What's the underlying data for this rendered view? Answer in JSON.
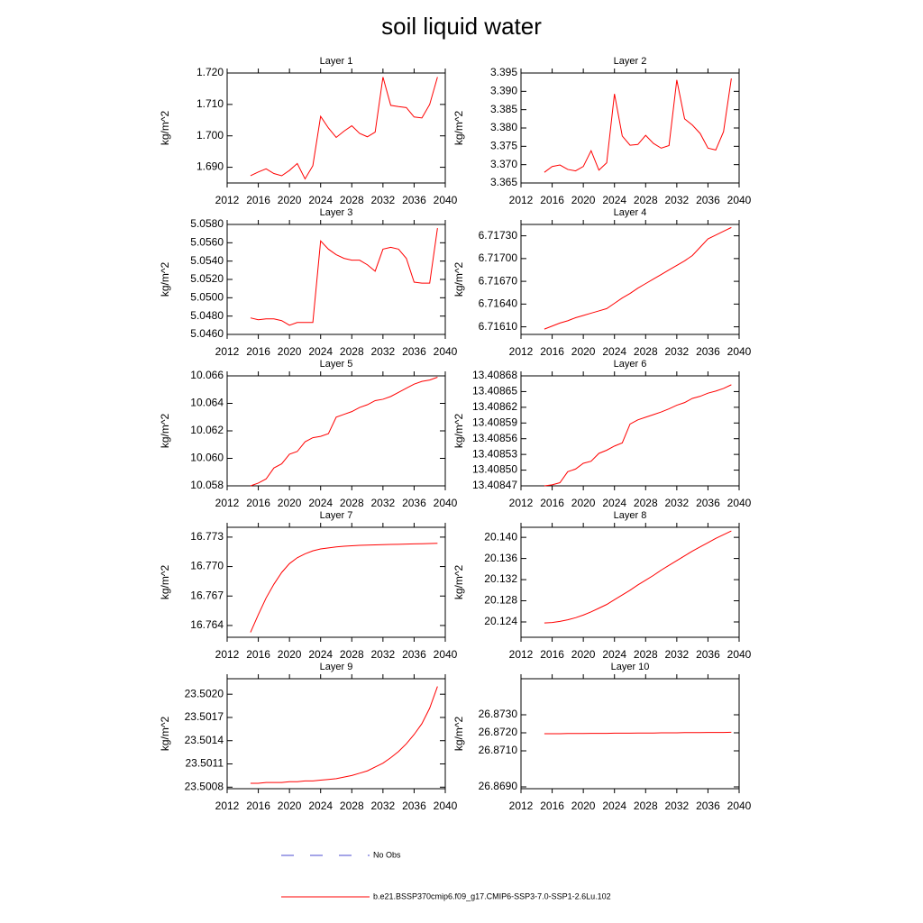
{
  "title": "soil liquid water",
  "legend": [
    {
      "label": "No Obs",
      "color": "#4b4bd0",
      "dash": true
    },
    {
      "label": "b.e21.BSSP370cmip6.f09_g17.CMIP6-SSP3-7.0-SSP1-2.6Lu.102",
      "color": "#ff0000",
      "dash": false
    }
  ],
  "chart_data": [
    {
      "type": "line",
      "title": "Layer 1",
      "ylabel": "kg/m^2",
      "color": "#ff0000",
      "x": [
        2015,
        2016,
        2017,
        2018,
        2019,
        2020,
        2021,
        2022,
        2023,
        2024,
        2025,
        2026,
        2027,
        2028,
        2029,
        2030,
        2031,
        2032,
        2033,
        2034,
        2035,
        2036,
        2037,
        2038,
        2039
      ],
      "values": [
        1.6873,
        1.6885,
        1.6895,
        1.688,
        1.6873,
        1.689,
        1.6912,
        1.6863,
        1.6905,
        1.7062,
        1.7025,
        1.6995,
        1.7015,
        1.7032,
        1.7008,
        1.6997,
        1.7012,
        1.7187,
        1.7097,
        1.7093,
        1.709,
        1.706,
        1.7057,
        1.71,
        1.7187
      ],
      "xlim": [
        2012,
        2040
      ],
      "xticks": [
        2012,
        2016,
        2020,
        2024,
        2028,
        2032,
        2036,
        2040
      ],
      "ylim": [
        1.685,
        1.72
      ],
      "yticks": [
        {
          "value": 1.69,
          "label": "1.690"
        },
        {
          "value": 1.7,
          "label": "1.700"
        },
        {
          "value": 1.71,
          "label": "1.710"
        },
        {
          "value": 1.72,
          "label": "1.720"
        }
      ]
    },
    {
      "type": "line",
      "title": "Layer 2",
      "ylabel": "kg/m^2",
      "color": "#ff0000",
      "x": [
        2015,
        2016,
        2017,
        2018,
        2019,
        2020,
        2021,
        2022,
        2023,
        2024,
        2025,
        2026,
        2027,
        2028,
        2029,
        2030,
        2031,
        2032,
        2033,
        2034,
        2035,
        2036,
        2037,
        2038,
        2039
      ],
      "values": [
        3.3679,
        3.3695,
        3.3699,
        3.3687,
        3.3683,
        3.3695,
        3.3738,
        3.3685,
        3.3705,
        3.3893,
        3.3778,
        3.3753,
        3.3755,
        3.378,
        3.3758,
        3.3745,
        3.3752,
        3.3931,
        3.3825,
        3.3808,
        3.3785,
        3.3745,
        3.374,
        3.379,
        3.3935
      ],
      "xlim": [
        2012,
        2040
      ],
      "xticks": [
        2012,
        2016,
        2020,
        2024,
        2028,
        2032,
        2036,
        2040
      ],
      "ylim": [
        3.365,
        3.395
      ],
      "yticks": [
        3.365,
        {
          "value": 3.37,
          "label": "3.370"
        },
        3.375,
        {
          "value": 3.38,
          "label": "3.380"
        },
        3.385,
        {
          "value": 3.39,
          "label": "3.390"
        },
        3.395
      ]
    },
    {
      "type": "line",
      "title": "Layer 3",
      "ylabel": "kg/m^2",
      "color": "#ff0000",
      "x": [
        2015,
        2016,
        2017,
        2018,
        2019,
        2020,
        2021,
        2022,
        2023,
        2024,
        2025,
        2026,
        2027,
        2028,
        2029,
        2030,
        2031,
        2032,
        2033,
        2034,
        2035,
        2036,
        2037,
        2038,
        2039
      ],
      "values": [
        5.0478,
        5.0476,
        5.0477,
        5.0477,
        5.0475,
        5.047,
        5.0473,
        5.0473,
        5.0473,
        5.0562,
        5.0553,
        5.0547,
        5.0543,
        5.0541,
        5.0541,
        5.0536,
        5.0529,
        5.0553,
        5.0555,
        5.0553,
        5.0543,
        5.0517,
        5.0516,
        5.0516,
        5.0576
      ],
      "xlim": [
        2012,
        2040
      ],
      "xticks": [
        2012,
        2016,
        2020,
        2024,
        2028,
        2032,
        2036,
        2040
      ],
      "ylim": [
        5.046,
        5.058
      ],
      "yticks": [
        {
          "value": 5.046,
          "label": "5.0460"
        },
        {
          "value": 5.048,
          "label": "5.0480"
        },
        {
          "value": 5.05,
          "label": "5.0500"
        },
        {
          "value": 5.052,
          "label": "5.0520"
        },
        {
          "value": 5.054,
          "label": "5.0540"
        },
        {
          "value": 5.056,
          "label": "5.0560"
        },
        {
          "value": 5.058,
          "label": "5.0580"
        }
      ]
    },
    {
      "type": "line",
      "title": "Layer 4",
      "ylabel": "kg/m^2",
      "color": "#ff0000",
      "x": [
        2015,
        2016,
        2017,
        2018,
        2019,
        2020,
        2021,
        2022,
        2023,
        2024,
        2025,
        2026,
        2027,
        2028,
        2029,
        2030,
        2031,
        2032,
        2033,
        2034,
        2035,
        2036,
        2037,
        2038,
        2039
      ],
      "values": [
        6.71607,
        6.71611,
        6.71615,
        6.71618,
        6.71622,
        6.71625,
        6.71628,
        6.71631,
        6.71634,
        6.71641,
        6.71648,
        6.71654,
        6.71661,
        6.71667,
        6.71673,
        6.71679,
        6.71685,
        6.71691,
        6.71697,
        6.71704,
        6.71715,
        6.71726,
        6.71731,
        6.71736,
        6.71741
      ],
      "xlim": [
        2012,
        2040
      ],
      "xticks": [
        2012,
        2016,
        2020,
        2024,
        2028,
        2032,
        2036,
        2040
      ],
      "ylim": [
        6.716,
        6.71745
      ],
      "yticks": [
        {
          "value": 6.7161,
          "label": "6.71610"
        },
        {
          "value": 6.7164,
          "label": "6.71640"
        },
        {
          "value": 6.7167,
          "label": "6.71670"
        },
        {
          "value": 6.717,
          "label": "6.71700"
        },
        {
          "value": 6.7173,
          "label": "6.71730"
        }
      ]
    },
    {
      "type": "line",
      "title": "Layer 5",
      "ylabel": "kg/m^2",
      "color": "#ff0000",
      "x": [
        2015,
        2016,
        2017,
        2018,
        2019,
        2020,
        2021,
        2022,
        2023,
        2024,
        2025,
        2026,
        2027,
        2028,
        2029,
        2030,
        2031,
        2032,
        2033,
        2034,
        2035,
        2036,
        2037,
        2038,
        2039
      ],
      "values": [
        10.058,
        10.0582,
        10.0585,
        10.0593,
        10.0596,
        10.0603,
        10.0605,
        10.0612,
        10.0615,
        10.0616,
        10.0618,
        10.063,
        10.0632,
        10.0634,
        10.0637,
        10.0639,
        10.0642,
        10.0643,
        10.0645,
        10.0648,
        10.0651,
        10.0654,
        10.0656,
        10.0657,
        10.0659
      ],
      "xlim": [
        2012,
        2040
      ],
      "xticks": [
        2012,
        2016,
        2020,
        2024,
        2028,
        2032,
        2036,
        2040
      ],
      "ylim": [
        10.058,
        10.066
      ],
      "yticks": [
        10.058,
        {
          "value": 10.06,
          "label": "10.060"
        },
        10.062,
        10.064,
        10.066
      ]
    },
    {
      "type": "line",
      "title": "Layer 6",
      "ylabel": "kg/m^2",
      "color": "#ff0000",
      "x": [
        2015,
        2016,
        2017,
        2018,
        2019,
        2020,
        2021,
        2022,
        2023,
        2024,
        2025,
        2026,
        2027,
        2028,
        2029,
        2030,
        2031,
        2032,
        2033,
        2034,
        2035,
        2036,
        2037,
        2038,
        2039
      ],
      "values": [
        13.40847,
        13.408472,
        13.408476,
        13.408497,
        13.408502,
        13.408513,
        13.408517,
        13.408532,
        13.408538,
        13.408546,
        13.408552,
        13.408588,
        13.408596,
        13.408601,
        13.408606,
        13.408611,
        13.408617,
        13.408624,
        13.408629,
        13.408637,
        13.408641,
        13.408647,
        13.408651,
        13.408656,
        13.408663
      ],
      "xlim": [
        2012,
        2040
      ],
      "xticks": [
        2012,
        2016,
        2020,
        2024,
        2028,
        2032,
        2036,
        2040
      ],
      "ylim": [
        13.40847,
        13.40868
      ],
      "yticks": [
        13.40847,
        {
          "value": 13.4085,
          "label": "13.40850"
        },
        13.40853,
        13.40856,
        13.40859,
        13.40862,
        13.40865,
        13.40868
      ]
    },
    {
      "type": "line",
      "title": "Layer 7",
      "ylabel": "kg/m^2",
      "color": "#ff0000",
      "x": [
        2015,
        2016,
        2017,
        2018,
        2019,
        2020,
        2021,
        2022,
        2023,
        2024,
        2025,
        2026,
        2027,
        2028,
        2029,
        2030,
        2031,
        2032,
        2033,
        2034,
        2035,
        2036,
        2037,
        2038,
        2039
      ],
      "values": [
        16.7633,
        16.7651,
        16.7668,
        16.7682,
        16.7694,
        16.7703,
        16.7709,
        16.7713,
        16.7716,
        16.7718,
        16.7719,
        16.772,
        16.77207,
        16.77212,
        16.77216,
        16.77219,
        16.77221,
        16.77223,
        16.77225,
        16.77227,
        16.77229,
        16.77231,
        16.77233,
        16.77235,
        16.77237
      ],
      "xlim": [
        2012,
        2040
      ],
      "xticks": [
        2012,
        2016,
        2020,
        2024,
        2028,
        2032,
        2036,
        2040
      ],
      "ylim": [
        16.7628,
        16.774
      ],
      "yticks": [
        16.764,
        16.767,
        {
          "value": 16.77,
          "label": "16.770"
        },
        16.773
      ]
    },
    {
      "type": "line",
      "title": "Layer 8",
      "ylabel": "kg/m^2",
      "color": "#ff0000",
      "x": [
        2015,
        2016,
        2017,
        2018,
        2019,
        2020,
        2021,
        2022,
        2023,
        2024,
        2025,
        2026,
        2027,
        2028,
        2029,
        2030,
        2031,
        2032,
        2033,
        2034,
        2035,
        2036,
        2037,
        2038,
        2039
      ],
      "values": [
        20.1238,
        20.1239,
        20.1241,
        20.1244,
        20.1248,
        20.1253,
        20.1259,
        20.1266,
        20.1273,
        20.1282,
        20.1291,
        20.13,
        20.131,
        20.1319,
        20.1328,
        20.1338,
        20.1347,
        20.1356,
        20.1365,
        20.1374,
        20.1382,
        20.139,
        20.1398,
        20.1405,
        20.1412
      ],
      "xlim": [
        2012,
        2040
      ],
      "xticks": [
        2012,
        2016,
        2020,
        2024,
        2028,
        2032,
        2036,
        2040
      ],
      "ylim": [
        20.1211,
        20.1419
      ],
      "yticks": [
        20.124,
        20.128,
        20.132,
        20.136,
        {
          "value": 20.14,
          "label": "20.140"
        }
      ]
    },
    {
      "type": "line",
      "title": "Layer 9",
      "ylabel": "kg/m^2",
      "color": "#ff0000",
      "x": [
        2015,
        2016,
        2017,
        2018,
        2019,
        2020,
        2021,
        2022,
        2023,
        2024,
        2025,
        2026,
        2027,
        2028,
        2029,
        2030,
        2031,
        2032,
        2033,
        2034,
        2035,
        2036,
        2037,
        2038,
        2039
      ],
      "values": [
        23.50085,
        23.50085,
        23.50086,
        23.50086,
        23.50086,
        23.50087,
        23.50087,
        23.50088,
        23.50088,
        23.50089,
        23.5009,
        23.50091,
        23.50093,
        23.50095,
        23.50098,
        23.50101,
        23.50106,
        23.50111,
        23.50118,
        23.50126,
        23.50136,
        23.50148,
        23.50162,
        23.50182,
        23.5021
      ],
      "xlim": [
        2012,
        2040
      ],
      "xticks": [
        2012,
        2016,
        2020,
        2024,
        2028,
        2032,
        2036,
        2040
      ],
      "ylim": [
        23.50078,
        23.5022
      ],
      "yticks": [
        23.5008,
        23.5011,
        23.5014,
        23.5017,
        {
          "value": 23.502,
          "label": "23.5020"
        }
      ]
    },
    {
      "type": "line",
      "title": "Layer 10",
      "ylabel": "kg/m^2",
      "color": "#ff0000",
      "x": [
        2015,
        2016,
        2017,
        2018,
        2019,
        2020,
        2021,
        2022,
        2023,
        2024,
        2025,
        2026,
        2027,
        2028,
        2029,
        2030,
        2031,
        2032,
        2033,
        2034,
        2035,
        2036,
        2037,
        2038,
        2039
      ],
      "values": [
        26.87195,
        26.87195,
        26.87195,
        26.87196,
        26.87196,
        26.87196,
        26.87197,
        26.87197,
        26.87197,
        26.87198,
        26.87198,
        26.87198,
        26.87199,
        26.87199,
        26.87199,
        26.872,
        26.872,
        26.872,
        26.87201,
        26.87201,
        26.87201,
        26.87202,
        26.87202,
        26.87202,
        26.87203
      ],
      "xlim": [
        2012,
        2040
      ],
      "xticks": [
        2012,
        2016,
        2020,
        2024,
        2028,
        2032,
        2036,
        2040
      ],
      "ylim": [
        26.8689,
        26.875
      ],
      "yticks": [
        {
          "value": 26.869,
          "label": "26.8690"
        },
        {
          "value": 26.871,
          "label": "26.8710"
        },
        {
          "value": 26.872,
          "label": "26.8720"
        },
        {
          "value": 26.873,
          "label": "26.8730"
        }
      ]
    }
  ]
}
